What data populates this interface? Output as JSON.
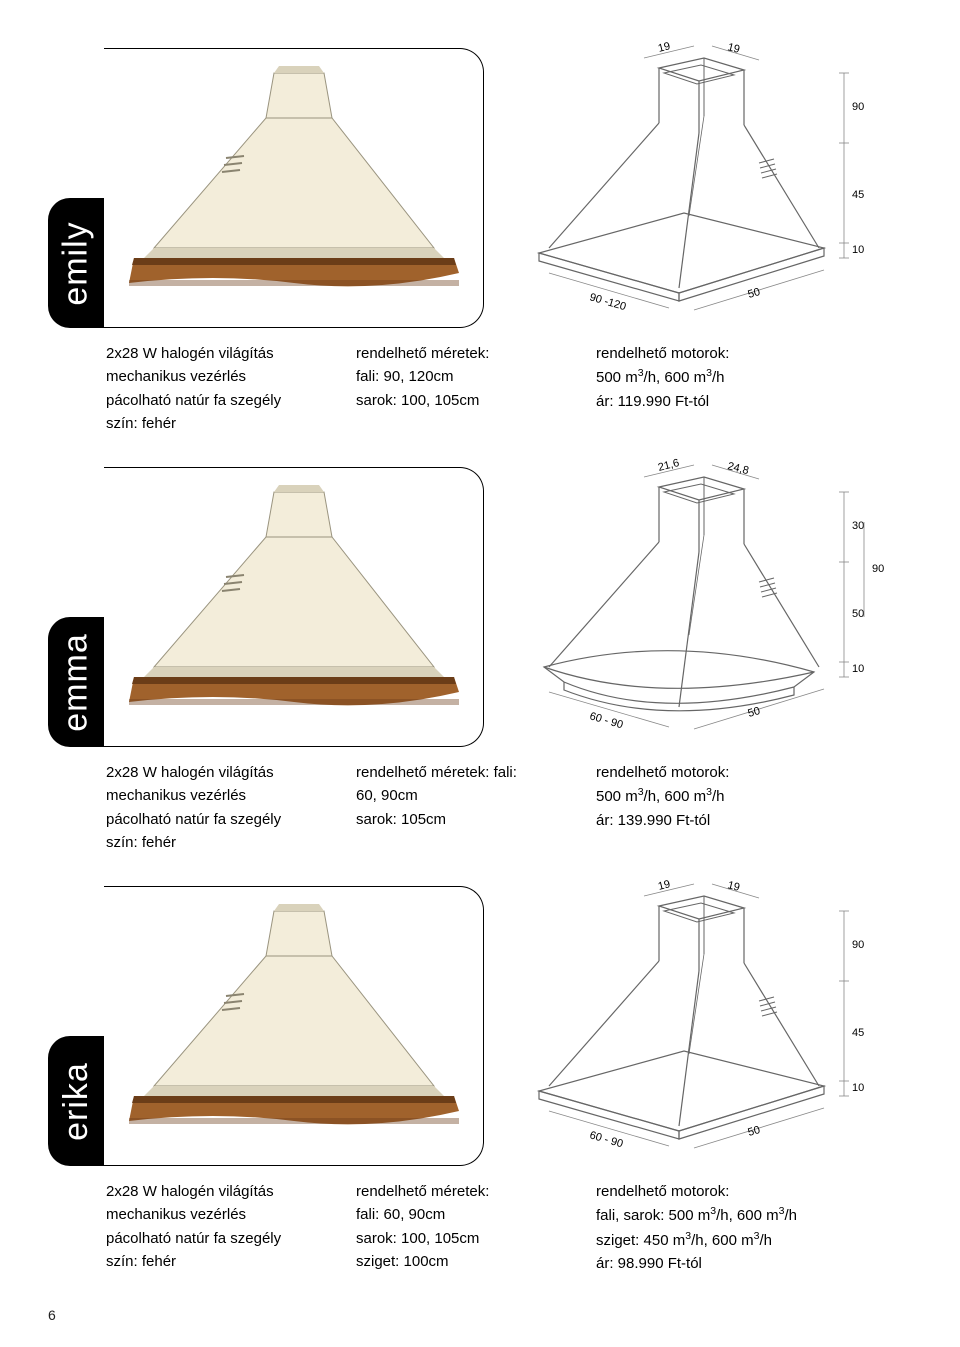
{
  "page_number": "6",
  "products": [
    {
      "name": "emily",
      "col1": [
        "2x28 W halogén világítás",
        "mechanikus vezérlés",
        "pácolható natúr fa szegély",
        "szín: fehér"
      ],
      "col2": [
        "rendelhető méretek:",
        "fali: 90, 120cm",
        "sarok: 100, 105cm"
      ],
      "col3": [
        "rendelhető motorok:",
        "500 m³/h, 600 m³/h",
        "ár: 119.990 Ft-tól"
      ],
      "diagram": {
        "top_left": "19",
        "top_right": "19",
        "right_top": "90",
        "right_mid": "45",
        "right_bot": "10",
        "bot_left": "90 -120",
        "bot_right": "50",
        "curved_base": false
      }
    },
    {
      "name": "emma",
      "col1": [
        "2x28 W halogén világítás",
        "mechanikus vezérlés",
        "pácolható natúr fa szegély",
        "szín: fehér"
      ],
      "col2": [
        "rendelhető méretek: fali:",
        "60, 90cm",
        "sarok: 105cm"
      ],
      "col3": [
        "rendelhető motorok:",
        "500 m³/h, 600 m³/h",
        "ár: 139.990 Ft-tól"
      ],
      "diagram": {
        "top_left": "21,6",
        "top_right": "24,8",
        "right_top": "30",
        "right_upper": "90",
        "right_mid": "50",
        "right_bot": "10",
        "bot_left": "60 - 90",
        "bot_right": "50",
        "curved_base": true
      }
    },
    {
      "name": "erika",
      "col1": [
        "2x28 W halogén világítás",
        "mechanikus vezérlés",
        "pácolható natúr fa szegély",
        "szín: fehér"
      ],
      "col2": [
        "rendelhető méretek:",
        "fali: 60, 90cm",
        "sarok: 100, 105cm",
        "sziget: 100cm"
      ],
      "col3": [
        "rendelhető motorok:",
        "fali, sarok: 500 m³/h, 600 m³/h",
        "sziget: 450 m³/h, 600 m³/h",
        "ár: 98.990 Ft-tól"
      ],
      "diagram": {
        "top_left": "19",
        "top_right": "19",
        "right_top": "90",
        "right_mid": "45",
        "right_bot": "10",
        "bot_left": "60 - 90",
        "bot_right": "50",
        "curved_base": false
      }
    }
  ],
  "colors": {
    "hood_body": "#f3edda",
    "hood_shadow": "#d9d2bb",
    "wood_light": "#a0622c",
    "wood_dark": "#6b3d18",
    "line": "#666666",
    "dim_line": "#888888"
  }
}
